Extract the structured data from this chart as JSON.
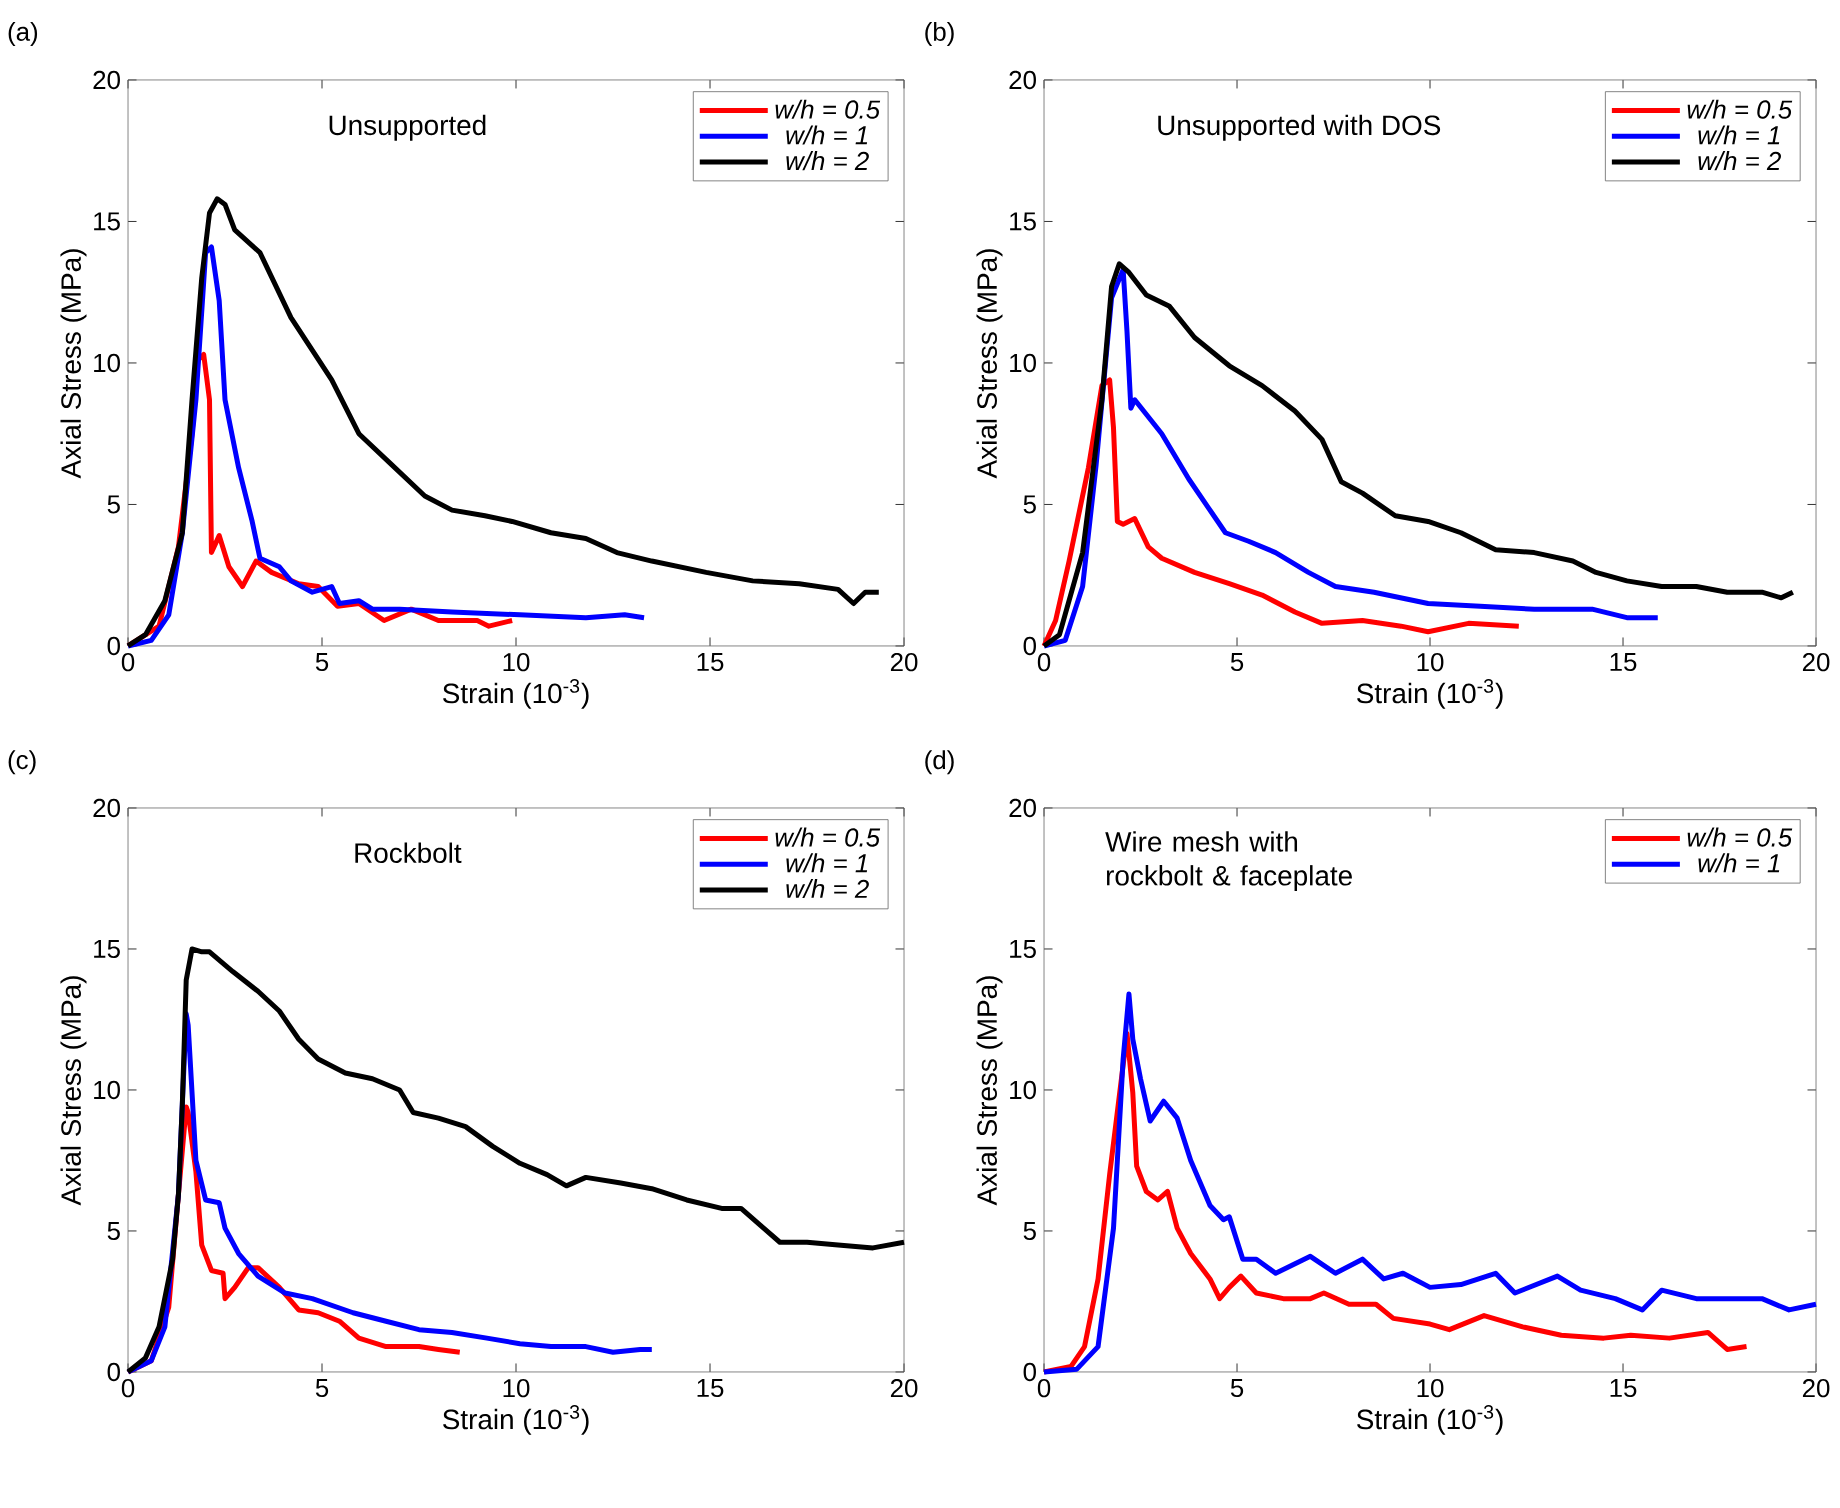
{
  "chart_data": [
    {
      "type": "line",
      "title": "Unsupported",
      "xlabel": "Strain (10$^{-3}$)",
      "ylabel": "Axial Stress (MPa)",
      "annotations": [
        "(a)"
      ],
      "xlim": [
        0,
        20
      ],
      "ylim": [
        0,
        20
      ],
      "xticks": [
        0,
        5,
        10,
        15,
        20
      ],
      "yticks": [
        0,
        5,
        10,
        15,
        20
      ],
      "legend": "top right",
      "series": [
        {
          "name": "w/h = 0.5",
          "color": "#ff0000",
          "x": [
            0,
            0.8,
            1.3,
            1.65,
            1.8,
            1.95,
            2.1,
            2.15,
            2.35,
            2.6,
            2.95,
            3.3,
            3.7,
            4.4,
            4.9,
            5.4,
            5.95,
            6.6,
            7.3,
            8.0,
            9.0,
            9.3,
            9.9
          ],
          "values": [
            0,
            0.7,
            3.5,
            7.5,
            10.1,
            10.3,
            8.7,
            3.3,
            3.9,
            2.8,
            2.1,
            3.0,
            2.6,
            2.2,
            2.1,
            1.4,
            1.5,
            0.9,
            1.3,
            0.9,
            0.9,
            0.7,
            0.9
          ]
        },
        {
          "name": "w/h = 1",
          "color": "#0000ff",
          "x": [
            0,
            0.6,
            1.05,
            1.4,
            1.75,
            2.0,
            2.15,
            2.35,
            2.5,
            2.85,
            3.2,
            3.4,
            3.9,
            4.2,
            4.75,
            5.25,
            5.45,
            5.95,
            6.3,
            7.0,
            8.35,
            10.1,
            11.8,
            12.8,
            13.3
          ],
          "values": [
            0,
            0.2,
            1.1,
            4.0,
            8.7,
            13.9,
            14.1,
            12.2,
            8.7,
            6.3,
            4.4,
            3.1,
            2.8,
            2.3,
            1.9,
            2.1,
            1.5,
            1.6,
            1.3,
            1.3,
            1.2,
            1.1,
            1.0,
            1.1,
            1.0
          ]
        },
        {
          "name": "w/h = 2",
          "color": "#000000",
          "x": [
            0,
            0.45,
            0.95,
            1.4,
            1.65,
            1.9,
            2.1,
            2.3,
            2.5,
            2.75,
            3.4,
            4.2,
            5.25,
            5.95,
            6.8,
            7.65,
            8.35,
            9.2,
            9.9,
            10.9,
            11.8,
            12.6,
            13.5,
            14.9,
            16.1,
            17.3,
            18.3,
            18.7,
            19.0,
            19.35
          ],
          "values": [
            0,
            0.4,
            1.6,
            4.0,
            8.7,
            13.0,
            15.3,
            15.8,
            15.6,
            14.7,
            13.9,
            11.6,
            9.4,
            7.5,
            6.4,
            5.3,
            4.8,
            4.6,
            4.4,
            4.0,
            3.8,
            3.3,
            3.0,
            2.6,
            2.3,
            2.2,
            2.0,
            1.5,
            1.9,
            1.9
          ]
        }
      ]
    },
    {
      "type": "line",
      "title": "Unsupported with DOS",
      "xlabel": "Strain (10$^{-3}$)",
      "ylabel": "Axial Stress (MPa)",
      "annotations": [
        "(b)"
      ],
      "xlim": [
        0,
        20
      ],
      "ylim": [
        0,
        20
      ],
      "xticks": [
        0,
        5,
        10,
        15,
        20
      ],
      "yticks": [
        0,
        5,
        10,
        15,
        20
      ],
      "legend": "top right",
      "series": [
        {
          "name": "w/h = 0.5",
          "color": "#ff0000",
          "x": [
            0,
            0.3,
            0.65,
            1.15,
            1.5,
            1.7,
            1.8,
            1.9,
            2.05,
            2.35,
            2.7,
            3.05,
            3.9,
            4.8,
            5.65,
            6.5,
            7.2,
            8.25,
            9.25,
            9.95,
            11.0,
            12.3
          ],
          "values": [
            0,
            0.9,
            3.0,
            6.3,
            9.2,
            9.4,
            7.7,
            4.4,
            4.3,
            4.5,
            3.5,
            3.1,
            2.6,
            2.2,
            1.8,
            1.2,
            0.8,
            0.9,
            0.7,
            0.5,
            0.8,
            0.7
          ]
        },
        {
          "name": "w/h = 1",
          "color": "#0000ff",
          "x": [
            0,
            0.55,
            1.0,
            1.35,
            1.75,
            2.05,
            2.15,
            2.25,
            2.35,
            3.05,
            3.75,
            4.25,
            4.7,
            5.3,
            6.0,
            6.85,
            7.55,
            8.55,
            9.95,
            11.3,
            12.7,
            14.2,
            15.1,
            15.9
          ],
          "values": [
            0,
            0.2,
            2.1,
            6.4,
            12.3,
            13.3,
            11.1,
            8.4,
            8.7,
            7.5,
            5.9,
            4.9,
            4.0,
            3.7,
            3.3,
            2.6,
            2.1,
            1.9,
            1.5,
            1.4,
            1.3,
            1.3,
            1.0,
            1.0
          ]
        },
        {
          "name": "w/h = 2",
          "color": "#000000",
          "x": [
            0,
            0.4,
            1.0,
            1.5,
            1.75,
            1.95,
            2.2,
            2.65,
            3.25,
            3.9,
            4.8,
            5.65,
            6.5,
            7.2,
            7.7,
            8.25,
            9.1,
            9.95,
            10.8,
            11.7,
            12.7,
            13.7,
            14.3,
            15.1,
            16.0,
            16.9,
            17.7,
            18.6,
            19.1,
            19.4
          ],
          "values": [
            0,
            0.4,
            3.3,
            8.7,
            12.7,
            13.5,
            13.2,
            12.4,
            12.0,
            10.9,
            9.9,
            9.2,
            8.3,
            7.3,
            5.8,
            5.4,
            4.6,
            4.4,
            4.0,
            3.4,
            3.3,
            3.0,
            2.6,
            2.3,
            2.1,
            2.1,
            1.9,
            1.9,
            1.7,
            1.9
          ]
        }
      ]
    },
    {
      "type": "line",
      "title": "Rockbolt",
      "xlabel": "Strain (10$^{-3}$)",
      "ylabel": "Axial Stress (MPa)",
      "annotations": [
        "(c)"
      ],
      "xlim": [
        0,
        20
      ],
      "ylim": [
        0,
        20
      ],
      "xticks": [
        0,
        5,
        10,
        15,
        20
      ],
      "yticks": [
        0,
        5,
        10,
        15,
        20
      ],
      "legend": "top right",
      "series": [
        {
          "name": "w/h = 0.5",
          "color": "#ff0000",
          "x": [
            0,
            0.6,
            1.05,
            1.3,
            1.5,
            1.55,
            1.75,
            1.9,
            2.15,
            2.45,
            2.5,
            2.75,
            3.1,
            3.35,
            3.9,
            4.4,
            4.9,
            5.45,
            5.95,
            6.65,
            7.5,
            8.0,
            8.55
          ],
          "values": [
            0,
            0.4,
            2.3,
            6.3,
            9.4,
            9.2,
            7.1,
            4.5,
            3.6,
            3.5,
            2.6,
            3.0,
            3.7,
            3.7,
            3.0,
            2.2,
            2.1,
            1.8,
            1.2,
            0.9,
            0.9,
            0.8,
            0.7
          ]
        },
        {
          "name": "w/h = 1",
          "color": "#0000ff",
          "x": [
            0,
            0.6,
            0.95,
            1.3,
            1.5,
            1.55,
            1.75,
            2.0,
            2.35,
            2.5,
            2.85,
            3.35,
            4.05,
            4.75,
            5.8,
            6.65,
            7.5,
            8.35,
            9.25,
            10.1,
            10.9,
            11.8,
            12.5,
            13.2,
            13.5
          ],
          "values": [
            0,
            0.4,
            1.6,
            6.3,
            12.7,
            12.3,
            7.5,
            6.1,
            6.0,
            5.1,
            4.2,
            3.4,
            2.8,
            2.6,
            2.1,
            1.8,
            1.5,
            1.4,
            1.2,
            1.0,
            0.9,
            0.9,
            0.7,
            0.8,
            0.8
          ]
        },
        {
          "name": "w/h = 2",
          "color": "#000000",
          "x": [
            0,
            0.45,
            0.8,
            1.15,
            1.3,
            1.4,
            1.5,
            1.65,
            1.9,
            2.1,
            2.7,
            3.35,
            3.9,
            4.4,
            4.9,
            5.6,
            6.3,
            7.0,
            7.35,
            8.0,
            8.7,
            9.4,
            10.1,
            10.8,
            11.3,
            11.8,
            12.7,
            13.5,
            14.4,
            15.3,
            15.8,
            16.3,
            16.8,
            17.5,
            18.3,
            19.2,
            20
          ],
          "values": [
            0,
            0.5,
            1.6,
            4.0,
            6.3,
            9.5,
            13.9,
            15.0,
            14.9,
            14.9,
            14.2,
            13.5,
            12.8,
            11.8,
            11.1,
            10.6,
            10.4,
            10.0,
            9.2,
            9.0,
            8.7,
            8.0,
            7.4,
            7.0,
            6.6,
            6.9,
            6.7,
            6.5,
            6.1,
            5.8,
            5.8,
            5.2,
            4.6,
            4.6,
            4.5,
            4.4,
            4.6
          ]
        }
      ]
    },
    {
      "type": "line",
      "title": "Wire mesh with rockbolt & faceplate",
      "xlabel": "Strain (10$^{-3}$)",
      "ylabel": "Axial Stress (MPa)",
      "annotations": [
        "(d)"
      ],
      "xlim": [
        0,
        20
      ],
      "ylim": [
        0,
        20
      ],
      "xticks": [
        0,
        5,
        10,
        15,
        20
      ],
      "yticks": [
        0,
        5,
        10,
        15,
        20
      ],
      "legend": "top right",
      "series": [
        {
          "name": "w/h = 0.5",
          "color": "#ff0000",
          "x": [
            0,
            0.7,
            1.05,
            1.4,
            1.7,
            2.15,
            2.3,
            2.4,
            2.65,
            2.95,
            3.2,
            3.45,
            3.8,
            4.3,
            4.55,
            4.8,
            5.1,
            5.5,
            6.2,
            6.9,
            7.25,
            7.9,
            8.6,
            9.05,
            10.0,
            10.5,
            11.4,
            12.4,
            13.4,
            14.5,
            15.2,
            16.2,
            17.2,
            17.7,
            18.2
          ],
          "values": [
            0,
            0.2,
            0.9,
            3.3,
            7.0,
            12.0,
            9.9,
            7.3,
            6.4,
            6.1,
            6.4,
            5.1,
            4.2,
            3.3,
            2.6,
            3.0,
            3.4,
            2.8,
            2.6,
            2.6,
            2.8,
            2.4,
            2.4,
            1.9,
            1.7,
            1.5,
            2.0,
            1.6,
            1.3,
            1.2,
            1.3,
            1.2,
            1.4,
            0.8,
            0.9
          ]
        },
        {
          "name": "w/h = 1",
          "color": "#0000ff",
          "x": [
            0,
            0.85,
            1.4,
            1.8,
            2.05,
            2.2,
            2.3,
            2.5,
            2.75,
            3.1,
            3.45,
            3.8,
            4.3,
            4.65,
            4.8,
            5.15,
            5.5,
            6.0,
            6.9,
            7.55,
            8.25,
            8.8,
            9.3,
            10.0,
            10.8,
            11.7,
            12.2,
            13.3,
            13.9,
            14.8,
            15.5,
            16.0,
            16.9,
            17.7,
            18.6,
            19.3,
            20
          ],
          "values": [
            0,
            0.1,
            0.9,
            5.1,
            11.1,
            13.4,
            11.8,
            10.4,
            8.9,
            9.6,
            9.0,
            7.5,
            5.9,
            5.4,
            5.5,
            4.0,
            4.0,
            3.5,
            4.1,
            3.5,
            4.0,
            3.3,
            3.5,
            3.0,
            3.1,
            3.5,
            2.8,
            3.4,
            2.9,
            2.6,
            2.2,
            2.9,
            2.6,
            2.6,
            2.6,
            2.2,
            2.4
          ]
        }
      ]
    }
  ]
}
